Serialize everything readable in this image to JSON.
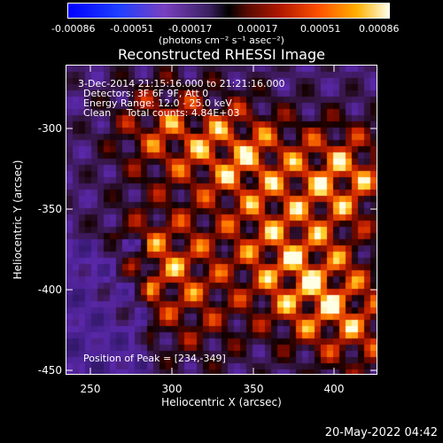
{
  "colorbar": {
    "ticks": [
      "-0.00086",
      "-0.00051",
      "-0.00017",
      "0.00017",
      "0.00051",
      "0.00086"
    ],
    "unit": "(photons cm⁻² s⁻¹ asec⁻²)"
  },
  "title": "Reconstructed RHESSI Image",
  "info": {
    "line1": "3-Dec-2014 21:15:16.000 to 21:21:16.000",
    "line2": "Detectors: 3F 6F 9F, Att 0",
    "line3": "Energy Range: 12.0 - 25.0 keV",
    "line4": "Clean     Total counts: 4.84E+03",
    "peak": "Position of Peak = [234,-349]"
  },
  "axes": {
    "xlabel": "Heliocentric X (arcsec)",
    "ylabel": "Heliocentric Y (arcsec)",
    "xticks": [
      "250",
      "300",
      "350",
      "400"
    ],
    "yticks": [
      "-300",
      "-350",
      "-400",
      "-450"
    ]
  },
  "timestamp": "20-May-2022 04:42"
}
